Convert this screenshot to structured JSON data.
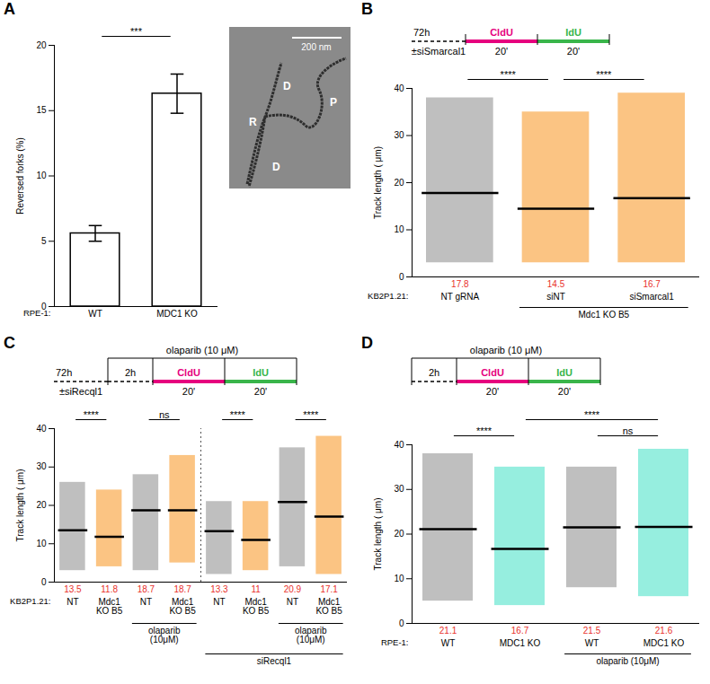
{
  "chart_data": [
    {
      "panel": "A",
      "type": "bar",
      "categories": [
        "WT",
        "MDC1 KO"
      ],
      "row_label": "RPE-1:",
      "values": [
        5.6,
        16.3
      ],
      "errors": [
        0.6,
        1.5
      ],
      "color": "#ffffff",
      "ylabel": "Reversed forks (%)",
      "ylim": [
        0,
        20
      ],
      "yticks": [
        0,
        5,
        10,
        15,
        20
      ],
      "annotations": [
        {
          "from": 0,
          "to": 1,
          "text": "***",
          "level": 0
        }
      ],
      "image": {
        "scale_bar": "200 nm",
        "labels": [
          "D",
          "P",
          "R",
          "D"
        ]
      }
    },
    {
      "panel": "B",
      "type": "strip",
      "schematic": {
        "prelabel": "72h",
        "pretreat": "±siSmarcal1",
        "pulses": [
          {
            "label": "CldU",
            "color": "#e6007e",
            "time": "20'"
          },
          {
            "label": "IdU",
            "color": "#39b54a",
            "time": "20'"
          }
        ]
      },
      "categories": [
        "NT gRNA",
        "siNT",
        "siSmarcal1"
      ],
      "row_label": "KB2P1.21:",
      "groups": [
        {
          "label": "Mdc1 KO B5",
          "from": 1,
          "to": 2,
          "level": 0
        }
      ],
      "values": [
        17.8,
        14.5,
        16.7
      ],
      "min": [
        3,
        3,
        3
      ],
      "max": [
        38,
        35,
        39
      ],
      "colors": [
        "#8a8a8a",
        "#f7941d",
        "#f7941d"
      ],
      "data_labels": true,
      "ylabel": "Track length ( μm)",
      "ylim": [
        0,
        40
      ],
      "yticks": [
        0,
        10,
        20,
        30,
        40
      ],
      "annotations": [
        {
          "from": 0,
          "to": 1,
          "text": "****",
          "level": 0
        },
        {
          "from": 1,
          "to": 2,
          "text": "****",
          "level": 0
        }
      ]
    },
    {
      "panel": "C",
      "type": "strip",
      "schematic": {
        "prelabel": "72h",
        "pretreat": "±siRecql1",
        "drug": "olaparib (10 μM)",
        "drug_time": "2h",
        "pulses": [
          {
            "label": "CldU",
            "color": "#e6007e",
            "time": "20'"
          },
          {
            "label": "IdU",
            "color": "#39b54a",
            "time": "20'"
          }
        ]
      },
      "categories": [
        "NT",
        "Mdc1 KO B5",
        "NT",
        "Mdc1 KO B5",
        "NT",
        "Mdc1 KO B5",
        "NT",
        "Mdc1 KO B5"
      ],
      "row_label": "KB2P1.21:",
      "groups": [
        {
          "label": "olaparib (10μM)",
          "from": 2,
          "to": 3,
          "level": 0
        },
        {
          "label": "olaparib (10μM)",
          "from": 6,
          "to": 7,
          "level": 0
        },
        {
          "label": "siRecql1",
          "from": 4,
          "to": 7,
          "level": 1
        }
      ],
      "values": [
        13.5,
        11.8,
        18.7,
        18.7,
        13.3,
        11,
        20.9,
        17.1
      ],
      "min": [
        3,
        4,
        3,
        5,
        2,
        3,
        4,
        2
      ],
      "max": [
        26,
        24,
        28,
        33,
        21,
        21,
        35,
        38
      ],
      "colors": [
        "#8a8a8a",
        "#f7941d",
        "#8a8a8a",
        "#f7941d",
        "#8a8a8a",
        "#f7941d",
        "#8a8a8a",
        "#f7941d"
      ],
      "data_labels": true,
      "ylabel": "Track length ( μm)",
      "ylim": [
        0,
        40
      ],
      "yticks": [
        0,
        10,
        20,
        30,
        40
      ],
      "annotations": [
        {
          "from": 0,
          "to": 1,
          "text": "****",
          "level": 0
        },
        {
          "from": 2,
          "to": 3,
          "text": "ns",
          "level": 0
        },
        {
          "from": 4,
          "to": 5,
          "text": "****",
          "level": 0
        },
        {
          "from": 6,
          "to": 7,
          "text": "****",
          "level": 0
        }
      ]
    },
    {
      "panel": "D",
      "type": "strip",
      "schematic": {
        "drug": "olaparib (10 μM)",
        "drug_time": "2h",
        "pulses": [
          {
            "label": "CldU",
            "color": "#e6007e",
            "time": "20'"
          },
          {
            "label": "IdU",
            "color": "#39b54a",
            "time": "20'"
          }
        ]
      },
      "categories": [
        "WT",
        "MDC1 KO",
        "WT",
        "MDC1 KO"
      ],
      "row_label": "RPE-1:",
      "groups": [
        {
          "label": "olaparib (10μM)",
          "from": 2,
          "to": 3,
          "level": 0
        }
      ],
      "values": [
        21.1,
        16.7,
        21.5,
        21.6
      ],
      "min": [
        5,
        4,
        8,
        6
      ],
      "max": [
        38,
        35,
        35,
        39
      ],
      "colors": [
        "#8a8a8a",
        "#3fe0c5",
        "#8a8a8a",
        "#3fe0c5"
      ],
      "data_labels": true,
      "ylabel": "Track length ( μm)",
      "ylim": [
        0,
        40
      ],
      "yticks": [
        0,
        10,
        20,
        30,
        40
      ],
      "annotations": [
        {
          "from": 0,
          "to": 1,
          "text": "****",
          "level": 0
        },
        {
          "from": 2,
          "to": 3,
          "text": "ns",
          "level": 0
        },
        {
          "from": 1,
          "to": 3,
          "text": "****",
          "level": 1
        }
      ]
    }
  ]
}
